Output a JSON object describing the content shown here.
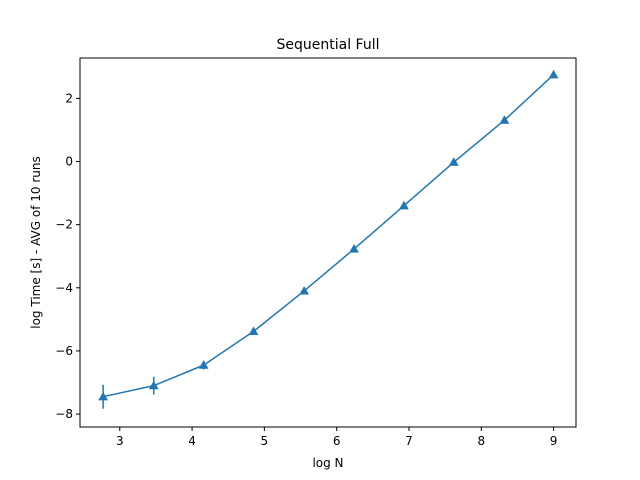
{
  "chart_data": {
    "type": "line",
    "title": "Sequential Full",
    "xlabel": "log N",
    "ylabel": "log Time  [s] - AVG of 10 runs",
    "xlim": [
      2.45,
      9.31
    ],
    "ylim": [
      -8.41,
      3.28
    ],
    "xticks": [
      3,
      4,
      5,
      6,
      7,
      8,
      9
    ],
    "yticks": [
      -8,
      -6,
      -4,
      -2,
      0,
      2
    ],
    "ytick_labels": [
      "−8",
      "−6",
      "−4",
      "−2",
      "0",
      "2"
    ],
    "grid": false,
    "marker": "triangle",
    "color": "#1f77b4",
    "series": [
      {
        "x": [
          2.77,
          3.47,
          4.16,
          4.85,
          5.55,
          6.24,
          6.93,
          7.62,
          8.32,
          9.0
        ],
        "y": [
          -7.45,
          -7.1,
          -6.45,
          -5.38,
          -4.1,
          -2.77,
          -1.4,
          -0.02,
          1.31,
          2.75
        ],
        "yerr": [
          0.38,
          0.28,
          0.14,
          0.05,
          0.03,
          0.03,
          0.02,
          0.02,
          0.02,
          0.02
        ]
      }
    ]
  }
}
